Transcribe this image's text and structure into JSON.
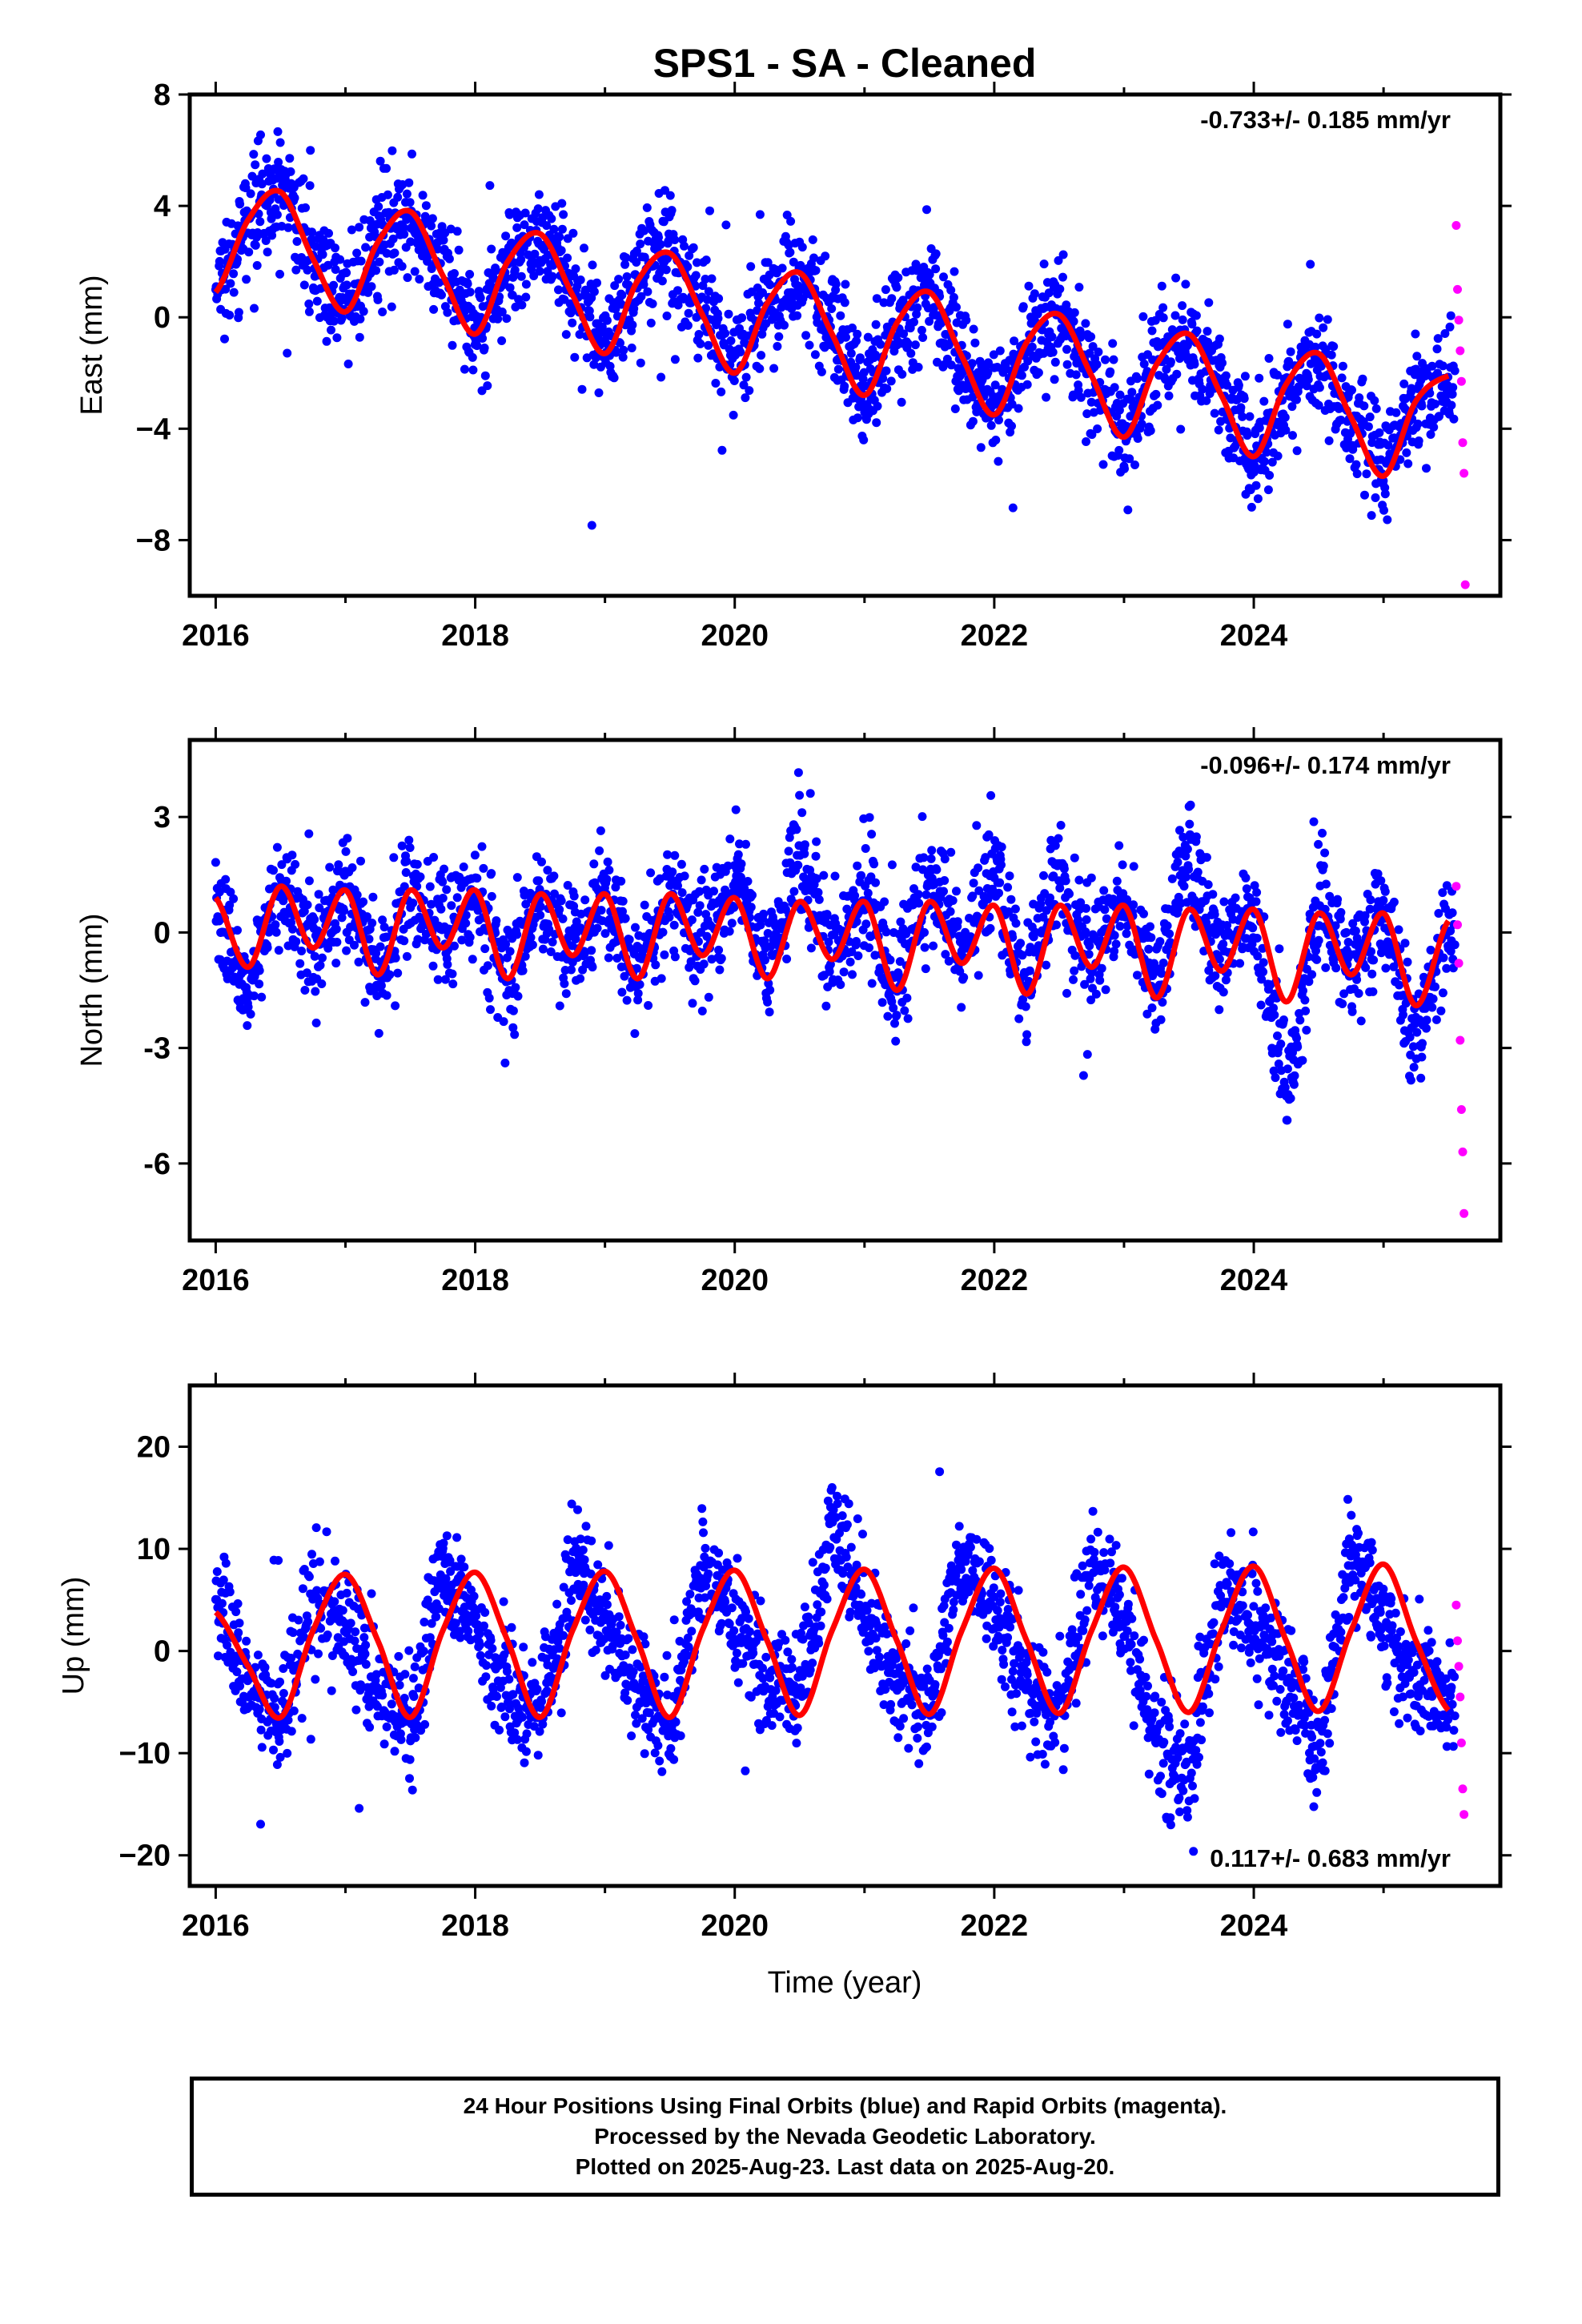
{
  "title": "SPS1  - SA - Cleaned",
  "colors": {
    "final_orbits": "#0000ff",
    "rapid_orbits": "#ff00ff",
    "model_fit": "#ff0000",
    "frame": "#000000"
  },
  "footer": {
    "line1": "24 Hour Positions Using Final Orbits (blue) and Rapid Orbits (magenta).",
    "line2": "Processed by the Nevada Geodetic Laboratory.",
    "line3": "Plotted on 2025-Aug-23. Last data on 2025-Aug-20."
  },
  "chart_data": [
    {
      "type": "scatter",
      "component": "east",
      "ylabel": "East (mm)",
      "xlabel": "",
      "xlim": [
        2015.8,
        2025.9
      ],
      "ylim": [
        -10,
        8
      ],
      "xticks": [
        "2016",
        "2018",
        "2020",
        "2022",
        "2024"
      ],
      "yticks": [
        "8",
        "4",
        "0",
        "−4",
        "−8"
      ],
      "rate_text": "-0.733+/- 0.185 mm/yr",
      "rate_position": "top-right",
      "grid": false,
      "series": [
        {
          "name": "Final Orbits (blue)",
          "x": [
            2016.0,
            2016.25,
            2016.5,
            2016.75,
            2017.0,
            2017.25,
            2017.5,
            2017.75,
            2018.0,
            2018.25,
            2018.5,
            2018.75,
            2019.0,
            2019.25,
            2019.5,
            2019.75,
            2020.0,
            2020.25,
            2020.5,
            2020.75,
            2021.0,
            2021.25,
            2021.5,
            2021.75,
            2022.0,
            2022.25,
            2022.5,
            2022.75,
            2023.0,
            2023.25,
            2023.5,
            2023.75,
            2024.0,
            2024.25,
            2024.5,
            2024.75,
            2025.0,
            2025.25,
            2025.5
          ],
          "y": [
            1.0,
            3.6,
            4.6,
            2.2,
            0.3,
            2.8,
            3.8,
            1.6,
            -0.6,
            2.1,
            3.1,
            1.2,
            -1.2,
            1.4,
            2.3,
            0.5,
            -1.9,
            0.7,
            1.6,
            -0.3,
            -2.7,
            -0.2,
            0.9,
            -1.3,
            -3.5,
            -1.0,
            0.1,
            -2.2,
            -4.2,
            -1.8,
            -0.7,
            -2.8,
            -5.0,
            -2.6,
            -1.4,
            -3.5,
            -5.6,
            -3.0,
            -2.3
          ]
        },
        {
          "name": "Rapid Orbits (magenta)",
          "x": [
            2025.56,
            2025.57,
            2025.58,
            2025.59,
            2025.6,
            2025.61,
            2025.62,
            2025.63
          ],
          "y": [
            3.3,
            1.0,
            -0.1,
            -1.2,
            -2.3,
            -4.5,
            -5.6,
            -9.6
          ]
        },
        {
          "name": "Model fit",
          "x": [
            2016.0,
            2016.25,
            2016.5,
            2016.75,
            2017.0,
            2017.25,
            2017.5,
            2017.75,
            2018.0,
            2018.25,
            2018.5,
            2018.75,
            2019.0,
            2019.25,
            2019.5,
            2019.75,
            2020.0,
            2020.25,
            2020.5,
            2020.75,
            2021.0,
            2021.25,
            2021.5,
            2021.75,
            2022.0,
            2022.25,
            2022.5,
            2022.75,
            2023.0,
            2023.25,
            2023.5,
            2023.75,
            2024.0,
            2024.25,
            2024.5,
            2024.75,
            2025.0,
            2025.25,
            2025.5
          ],
          "y": [
            0.9,
            3.5,
            4.5,
            2.1,
            0.2,
            2.7,
            3.8,
            1.5,
            -0.6,
            2.0,
            3.0,
            0.8,
            -1.3,
            1.3,
            2.3,
            0.1,
            -2.0,
            0.5,
            1.6,
            -0.6,
            -2.8,
            -0.2,
            0.9,
            -1.4,
            -3.5,
            -0.9,
            0.1,
            -2.1,
            -4.3,
            -1.7,
            -0.6,
            -2.8,
            -5.0,
            -2.4,
            -1.3,
            -3.6,
            -5.7,
            -3.0,
            -2.1
          ]
        }
      ]
    },
    {
      "type": "scatter",
      "component": "north",
      "ylabel": "North (mm)",
      "xlabel": "",
      "xlim": [
        2015.8,
        2025.9
      ],
      "ylim": [
        -8,
        5
      ],
      "xticks": [
        "2016",
        "2018",
        "2020",
        "2022",
        "2024"
      ],
      "yticks": [
        "3",
        "0",
        "-3",
        "-6"
      ],
      "rate_text": "-0.096+/- 0.174 mm/yr",
      "rate_position": "top-right",
      "grid": false,
      "series": [
        {
          "name": "Final Orbits (blue)",
          "x": [
            2016.0,
            2016.25,
            2016.5,
            2016.75,
            2017.0,
            2017.25,
            2017.5,
            2017.75,
            2018.0,
            2018.25,
            2018.5,
            2018.75,
            2019.0,
            2019.25,
            2019.5,
            2019.75,
            2020.0,
            2020.25,
            2020.5,
            2020.75,
            2021.0,
            2021.25,
            2021.5,
            2021.75,
            2022.0,
            2022.25,
            2022.5,
            2022.75,
            2023.0,
            2023.25,
            2023.5,
            2023.75,
            2024.0,
            2024.25,
            2024.5,
            2024.75,
            2025.0,
            2025.25,
            2025.5
          ],
          "y": [
            1.0,
            -1.8,
            1.5,
            -0.3,
            1.2,
            -1.2,
            1.2,
            -0.2,
            1.1,
            -1.1,
            1.1,
            -0.4,
            1.0,
            -1.1,
            1.0,
            -0.2,
            1.5,
            -1.0,
            2.2,
            -0.6,
            0.9,
            -1.4,
            1.5,
            -0.5,
            1.8,
            -1.4,
            1.7,
            -0.7,
            0.8,
            -1.6,
            2.3,
            -0.9,
            0.5,
            -4.0,
            0.6,
            -1.0,
            0.5,
            -2.8,
            0.3
          ]
        },
        {
          "name": "Rapid Orbits (magenta)",
          "x": [
            2025.56,
            2025.57,
            2025.58,
            2025.59,
            2025.6,
            2025.61,
            2025.62
          ],
          "y": [
            1.2,
            0.2,
            -0.8,
            -2.8,
            -4.6,
            -5.7,
            -7.3
          ]
        },
        {
          "name": "Model fit",
          "x": [
            2016.0,
            2016.25,
            2016.5,
            2016.75,
            2017.0,
            2017.25,
            2017.5,
            2017.75,
            2018.0,
            2018.25,
            2018.5,
            2018.75,
            2019.0,
            2019.25,
            2019.5,
            2019.75,
            2020.0,
            2020.25,
            2020.5,
            2020.75,
            2021.0,
            2021.25,
            2021.5,
            2021.75,
            2022.0,
            2022.25,
            2022.5,
            2022.75,
            2023.0,
            2023.25,
            2023.5,
            2023.75,
            2024.0,
            2024.25,
            2024.5,
            2024.75,
            2025.0,
            2025.25,
            2025.5
          ],
          "y": [
            0.9,
            -0.9,
            1.2,
            -0.4,
            1.1,
            -1.1,
            1.1,
            -0.4,
            1.1,
            -1.2,
            1.0,
            -0.6,
            1.0,
            -1.2,
            1.0,
            -0.6,
            0.9,
            -1.2,
            0.8,
            -0.7,
            0.8,
            -1.5,
            0.8,
            -0.8,
            0.7,
            -1.6,
            0.7,
            -0.9,
            0.7,
            -1.7,
            0.6,
            -1.0,
            0.6,
            -1.8,
            0.5,
            -1.1,
            0.5,
            -1.9,
            0.3
          ]
        }
      ]
    },
    {
      "type": "scatter",
      "component": "up",
      "ylabel": "Up (mm)",
      "xlabel": "Time (year)",
      "xlim": [
        2015.8,
        2025.9
      ],
      "ylim": [
        -23,
        26
      ],
      "xticks": [
        "2016",
        "2018",
        "2020",
        "2022",
        "2024"
      ],
      "yticks": [
        "20",
        "10",
        "0",
        "−10",
        "−20"
      ],
      "rate_text": "0.117+/- 0.683 mm/yr",
      "rate_position": "bottom-right",
      "grid": false,
      "series": [
        {
          "name": "Final Orbits (blue)",
          "x": [
            2016.0,
            2016.25,
            2016.5,
            2016.75,
            2017.0,
            2017.25,
            2017.5,
            2017.75,
            2018.0,
            2018.25,
            2018.5,
            2018.75,
            2019.0,
            2019.25,
            2019.5,
            2019.75,
            2020.0,
            2020.25,
            2020.5,
            2020.75,
            2021.0,
            2021.25,
            2021.5,
            2021.75,
            2022.0,
            2022.25,
            2022.5,
            2022.75,
            2023.0,
            2023.25,
            2023.5,
            2023.75,
            2024.0,
            2024.25,
            2024.5,
            2024.75,
            2025.0,
            2025.25,
            2025.5
          ],
          "y": [
            4.0,
            -3.0,
            -7.0,
            6.0,
            3.0,
            -3.0,
            -8.0,
            8.0,
            2.0,
            -4.0,
            -7.0,
            8.0,
            3.0,
            -4.0,
            -8.0,
            8.0,
            3.0,
            -3.0,
            -4.0,
            12.0,
            4.0,
            -3.0,
            -6.0,
            10.0,
            4.0,
            -4.0,
            -7.0,
            8.0,
            3.0,
            -8.0,
            -12.0,
            7.0,
            3.0,
            -3.0,
            -10.0,
            9.0,
            2.0,
            -3.0,
            -4.0
          ]
        },
        {
          "name": "Rapid Orbits (magenta)",
          "x": [
            2025.56,
            2025.57,
            2025.58,
            2025.59,
            2025.6,
            2025.61,
            2025.62
          ],
          "y": [
            4.5,
            1.0,
            -1.5,
            -4.5,
            -9.0,
            -13.5,
            -16.0
          ]
        },
        {
          "name": "Model fit",
          "x": [
            2016.0,
            2016.25,
            2016.5,
            2016.75,
            2017.0,
            2017.25,
            2017.5,
            2017.75,
            2018.0,
            2018.25,
            2018.5,
            2018.75,
            2019.0,
            2019.25,
            2019.5,
            2019.75,
            2020.0,
            2020.25,
            2020.5,
            2020.75,
            2021.0,
            2021.25,
            2021.5,
            2021.75,
            2022.0,
            2022.25,
            2022.5,
            2022.75,
            2023.0,
            2023.25,
            2023.5,
            2023.75,
            2024.0,
            2024.25,
            2024.5,
            2024.75,
            2025.0,
            2025.25,
            2025.5
          ],
          "y": [
            3.8,
            -1.5,
            -6.5,
            2.0,
            7.5,
            1.0,
            -6.5,
            2.0,
            7.7,
            1.0,
            -6.5,
            2.0,
            7.8,
            1.0,
            -6.5,
            2.0,
            7.9,
            1.0,
            -6.3,
            2.0,
            8.0,
            1.0,
            -6.2,
            2.0,
            8.1,
            1.0,
            -6.1,
            2.0,
            8.2,
            1.0,
            -6.0,
            2.0,
            8.3,
            1.0,
            -5.9,
            2.0,
            8.5,
            1.0,
            -5.8
          ]
        }
      ]
    }
  ]
}
